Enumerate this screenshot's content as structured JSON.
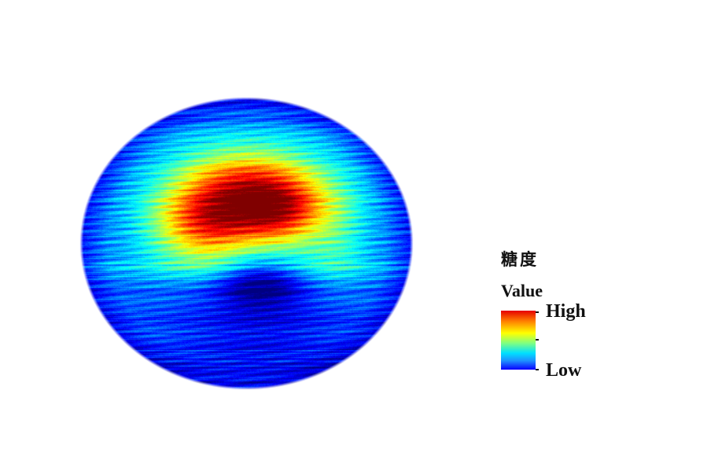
{
  "chart_data": {
    "type": "heatmap",
    "shape": "circle",
    "colormap": "jet",
    "legend": {
      "title": "糖度",
      "subtitle": "Value",
      "high_label": "High",
      "low_label": "Low"
    },
    "relative_values": {
      "description_levels": "0 = Low, 1 = High",
      "hotspots": [
        {
          "region": "upper-center",
          "level": 0.95
        },
        {
          "region": "center-left",
          "level": 0.8
        },
        {
          "region": "center",
          "level": 0.85
        },
        {
          "region": "lower-center",
          "level": 0.05
        },
        {
          "region": "outer-ring",
          "level": 0.2
        }
      ]
    }
  }
}
